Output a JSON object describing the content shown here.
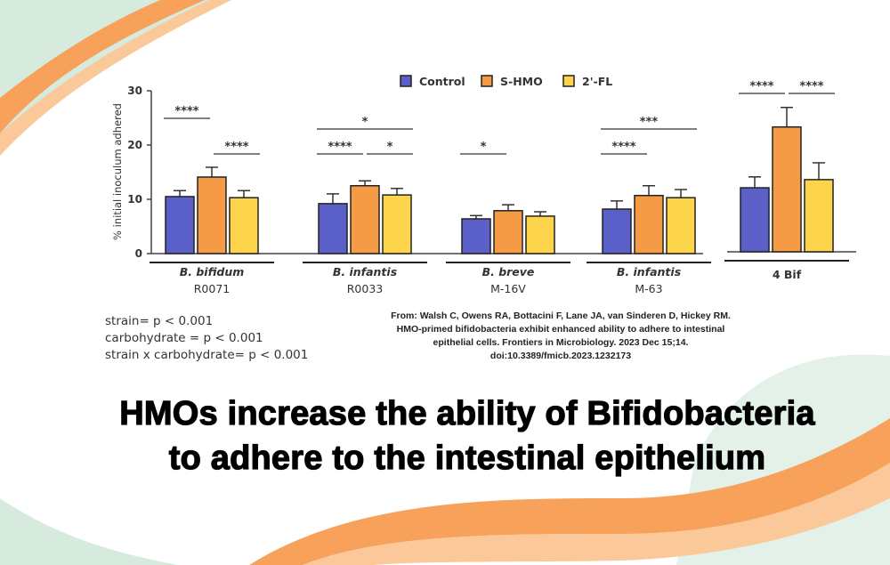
{
  "chart_data": {
    "type": "bar",
    "ylabel": "% initial inoculum adhered",
    "ylim": [
      0,
      30
    ],
    "yticks": [
      "0",
      "10",
      "20",
      "30"
    ],
    "legend_position": "top",
    "series_names": [
      "Control",
      "S-HMO",
      "2'-FL"
    ],
    "colors": [
      "#5a60c8",
      "#f59a45",
      "#fdd54c"
    ],
    "groups": [
      {
        "label_italic": "B. bifidum",
        "label_sub": "R0071",
        "values": [
          10.5,
          14.1,
          10.3
        ],
        "errors": [
          1.1,
          1.8,
          1.3
        ],
        "significance": [
          {
            "from": 0,
            "to": 1,
            "label": "****",
            "level": 1
          },
          {
            "from": 1,
            "to": 2,
            "label": "****",
            "level": 0
          }
        ]
      },
      {
        "label_italic": "B. infantis",
        "label_sub": "R0033",
        "values": [
          9.2,
          12.5,
          10.8
        ],
        "errors": [
          1.8,
          0.9,
          1.2
        ],
        "significance": [
          {
            "from": 0,
            "to": 2,
            "label": "*",
            "level": 1
          },
          {
            "from": 0,
            "to": 1,
            "label": "****",
            "level": 0
          },
          {
            "from": 1,
            "to": 2,
            "label": "*",
            "level": 0
          }
        ]
      },
      {
        "label_italic": "B. breve",
        "label_sub": "M-16V",
        "values": [
          6.4,
          7.9,
          6.9
        ],
        "errors": [
          0.6,
          1.1,
          0.8
        ],
        "significance": [
          {
            "from": 0,
            "to": 1,
            "label": "*",
            "level": 0
          }
        ]
      },
      {
        "label_italic": "B. infantis",
        "label_sub": "M-63",
        "values": [
          8.2,
          10.7,
          10.3
        ],
        "errors": [
          1.5,
          1.8,
          1.5
        ],
        "significance": [
          {
            "from": 0,
            "to": 2,
            "label": "***",
            "level": 1
          },
          {
            "from": 0,
            "to": 1,
            "label": "****",
            "level": 0
          }
        ]
      },
      {
        "label_italic": "",
        "label_sub": "4 Bif",
        "values": [
          11.8,
          23.0,
          13.3
        ],
        "errors": [
          2.0,
          3.6,
          3.1
        ],
        "significance": [
          {
            "from": 0,
            "to": 1,
            "label": "****",
            "level": 2
          },
          {
            "from": 1,
            "to": 2,
            "label": "****",
            "level": 2
          }
        ]
      }
    ]
  },
  "stats": [
    "strain= p < 0.001",
    "carbohydrate = p < 0.001",
    "strain x carbohydrate= p < 0.001"
  ],
  "citation": "From: Walsh C, Owens RA, Bottacini F, Lane JA, van Sinderen D, Hickey RM. HMO-primed bifidobacteria exhibit enhanced ability to adhere to intestinal epithelial cells. Frontiers in Microbiology. 2023 Dec 15;14. doi:10.3389/fmicb.2023.1232173",
  "headline": [
    "HMOs increase the ability of Bifidobacteria",
    "to adhere to the intestinal epithelium"
  ],
  "decor_colors": {
    "orange": "#f7a15a",
    "light_orange": "#fbc89a",
    "mint": "#cfe5d8"
  }
}
